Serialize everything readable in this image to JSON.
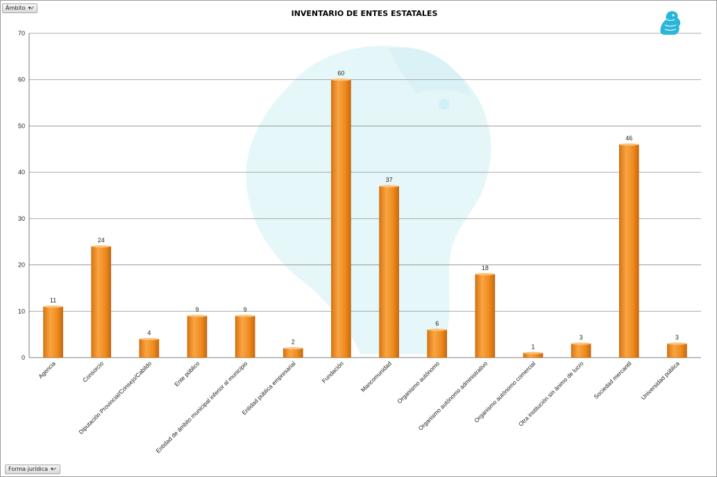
{
  "filters": {
    "top": {
      "label": "Ámbito",
      "icon": "filter-icon"
    },
    "bottom": {
      "label": "Forma jurídica",
      "icon": "filter-icon"
    }
  },
  "colors": {
    "bar_light": "#f7a84a",
    "bar_mid": "#f08c1e",
    "bar_dark": "#c8690e",
    "grid": "#8c8c8c",
    "logo": "#29b6d8",
    "watermark": "#d6f1f6"
  },
  "chart_data": {
    "type": "bar",
    "title": "INVENTARIO DE ENTES ESTATALES",
    "categories": [
      "Agencia",
      "Consorcio",
      "Diputación Provincial/Consejo/Cabildo",
      "Ente público",
      "Entidad de ámbito municipal inferior al municipio",
      "Entidad pública empresarial",
      "Fundación",
      "Mancomunidad",
      "Organismo autónomo",
      "Organismo autónomo administrativo",
      "Organismo autónomo comercial",
      "Otra institución sin ánimo de lucro",
      "Sociedad mercantil",
      "Universidad pública"
    ],
    "values": [
      11,
      24,
      4,
      9,
      9,
      2,
      60,
      37,
      6,
      18,
      1,
      3,
      46,
      3
    ],
    "ylim": [
      0,
      70
    ],
    "yticks": [
      "0",
      "10",
      "20",
      "30",
      "40",
      "50",
      "60",
      "70"
    ],
    "grid": true,
    "legend": "none"
  }
}
